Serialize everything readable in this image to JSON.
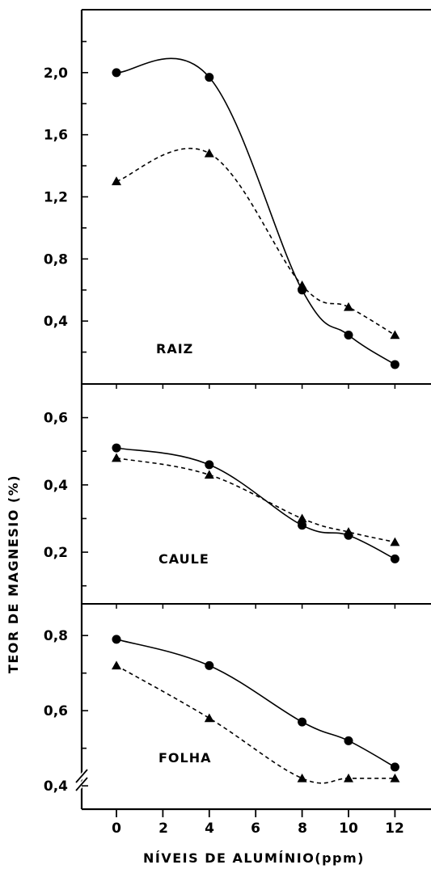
{
  "chart_data": [
    {
      "type": "line",
      "panel_label": "RAIZ",
      "x": [
        0,
        4,
        8,
        10,
        12
      ],
      "ylim": [
        0.0,
        2.4
      ],
      "y_ticks": [
        "0,4",
        "0,8",
        "1,2",
        "1,6",
        "2,0"
      ],
      "series": [
        {
          "marker": "circle",
          "line": "solid",
          "values": [
            2.0,
            1.97,
            0.6,
            0.31,
            0.12
          ]
        },
        {
          "marker": "triangle",
          "line": "dashed",
          "values": [
            1.3,
            1.48,
            0.63,
            0.49,
            0.31
          ]
        }
      ]
    },
    {
      "type": "line",
      "panel_label": "CAULE",
      "x": [
        0,
        4,
        8,
        10,
        12
      ],
      "ylim": [
        0.05,
        0.7
      ],
      "y_ticks": [
        "0,2",
        "0,4",
        "0,6"
      ],
      "series": [
        {
          "marker": "circle",
          "line": "solid",
          "values": [
            0.51,
            0.46,
            0.28,
            0.25,
            0.18
          ]
        },
        {
          "marker": "triangle",
          "line": "dashed",
          "values": [
            0.48,
            0.43,
            0.3,
            0.26,
            0.23
          ]
        }
      ]
    },
    {
      "type": "line",
      "panel_label": "FOLHA",
      "x": [
        0,
        4,
        8,
        10,
        12
      ],
      "ylim": [
        0.34,
        0.88
      ],
      "y_ticks": [
        "0,4",
        "0,6",
        "0,8"
      ],
      "series": [
        {
          "marker": "circle",
          "line": "solid",
          "values": [
            0.79,
            0.72,
            0.57,
            0.52,
            0.45
          ]
        },
        {
          "marker": "triangle",
          "line": "dashed",
          "values": [
            0.72,
            0.58,
            0.42,
            0.42,
            0.42
          ]
        }
      ]
    }
  ],
  "x_tick_labels": [
    "0",
    "2",
    "4",
    "6",
    "8",
    "10",
    "12"
  ],
  "xlabel": "NÍVEIS DE ALUMÍNIO(ppm)",
  "ylabel": "TEOR DE MAGNESIO (%)",
  "colors": {
    "ink": "#000000",
    "background": "#ffffff"
  }
}
